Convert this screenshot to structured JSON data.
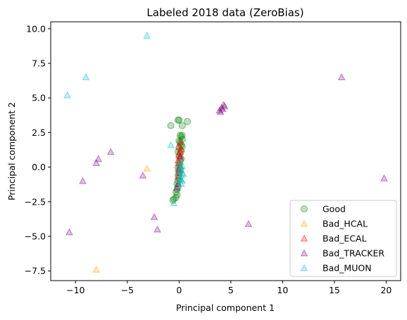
{
  "chart_data": {
    "type": "scatter",
    "title": "Labeled 2018 data (ZeroBias)",
    "xlabel": "Principal component 1",
    "ylabel": "Principal component 2",
    "xlim": [
      -12.4,
      21.4
    ],
    "ylim": [
      -8.2,
      10.5
    ],
    "xticks": [
      -10,
      -5,
      0,
      5,
      10,
      15,
      20
    ],
    "yticks": [
      -7.5,
      -5.0,
      -2.5,
      0.0,
      2.5,
      5.0,
      7.5,
      10.0
    ],
    "grid": false,
    "legend_position": "bottom-right",
    "series": [
      {
        "name": "Good",
        "marker": "circle",
        "color": "#008000",
        "points": [
          [
            -0.8,
            3.0
          ],
          [
            -0.1,
            3.4
          ],
          [
            0.0,
            3.4
          ],
          [
            0.3,
            3.0
          ],
          [
            0.8,
            3.3
          ],
          [
            0.1,
            2.3
          ],
          [
            0.2,
            2.2
          ],
          [
            0.3,
            2.0
          ],
          [
            0.1,
            1.8
          ],
          [
            0.2,
            1.6
          ],
          [
            0.0,
            1.4
          ],
          [
            0.2,
            1.2
          ],
          [
            0.1,
            1.0
          ],
          [
            0.0,
            0.8
          ],
          [
            0.2,
            0.6
          ],
          [
            0.1,
            0.4
          ],
          [
            0.0,
            0.2
          ],
          [
            -0.1,
            0.0
          ],
          [
            0.1,
            -0.2
          ],
          [
            0.0,
            -0.4
          ],
          [
            -0.1,
            -0.6
          ],
          [
            0.0,
            -0.8
          ],
          [
            -0.1,
            -1.0
          ],
          [
            -0.2,
            -1.2
          ],
          [
            -0.1,
            -1.4
          ],
          [
            -0.2,
            -1.6
          ],
          [
            -0.3,
            -1.8
          ],
          [
            -0.2,
            -2.0
          ],
          [
            -0.3,
            -2.2
          ],
          [
            -0.5,
            -2.3
          ],
          [
            -0.6,
            -2.4
          ],
          [
            0.3,
            2.3
          ],
          [
            0.0,
            1.9
          ],
          [
            0.3,
            1.5
          ],
          [
            -0.1,
            1.1
          ]
        ]
      },
      {
        "name": "Bad_HCAL",
        "marker": "triangle",
        "color": "#ffa500",
        "points": [
          [
            -3.1,
            -0.1
          ],
          [
            -8.0,
            -7.4
          ],
          [
            0.1,
            1.0
          ],
          [
            0.0,
            0.5
          ],
          [
            0.2,
            -0.2
          ]
        ]
      },
      {
        "name": "Bad_ECAL",
        "marker": "triangle",
        "color": "#ff0000",
        "points": [
          [
            0.1,
            1.8
          ],
          [
            0.0,
            1.5
          ],
          [
            0.2,
            1.3
          ],
          [
            0.1,
            1.1
          ],
          [
            0.0,
            0.9
          ],
          [
            0.1,
            0.7
          ],
          [
            -0.1,
            0.5
          ],
          [
            0.0,
            0.3
          ],
          [
            0.1,
            0.1
          ],
          [
            -0.1,
            -0.1
          ],
          [
            0.0,
            -0.4
          ],
          [
            -0.1,
            -0.7
          ]
        ]
      },
      {
        "name": "Bad_TRACKER",
        "marker": "triangle",
        "color": "#800080",
        "points": [
          [
            4.1,
            4.3
          ],
          [
            4.3,
            4.5
          ],
          [
            3.9,
            4.1
          ],
          [
            4.2,
            4.2
          ],
          [
            4.0,
            4.0
          ],
          [
            4.4,
            4.4
          ],
          [
            15.7,
            6.5
          ],
          [
            19.8,
            -0.8
          ],
          [
            6.7,
            -4.1
          ],
          [
            -6.6,
            1.1
          ],
          [
            -7.8,
            0.6
          ],
          [
            -8.0,
            0.3
          ],
          [
            -9.3,
            -1.0
          ],
          [
            -10.6,
            -4.7
          ],
          [
            -3.5,
            -0.6
          ],
          [
            -2.4,
            -3.6
          ],
          [
            -2.1,
            -4.5
          ],
          [
            0.0,
            -0.2
          ],
          [
            -0.1,
            -1.2
          ],
          [
            -0.2,
            -1.5
          ],
          [
            0.1,
            0.8
          ]
        ]
      },
      {
        "name": "Bad_MUON",
        "marker": "triangle",
        "color": "#00bfbf",
        "points": [
          [
            -3.1,
            9.5
          ],
          [
            -9.0,
            6.5
          ],
          [
            -10.8,
            5.2
          ],
          [
            -0.8,
            1.6
          ],
          [
            -0.5,
            -2.6
          ],
          [
            0.0,
            0.2
          ],
          [
            0.2,
            0.0
          ],
          [
            0.1,
            -0.2
          ],
          [
            0.3,
            -0.4
          ],
          [
            0.2,
            -0.6
          ],
          [
            0.1,
            -0.8
          ],
          [
            0.3,
            -1.0
          ],
          [
            0.2,
            -1.2
          ],
          [
            0.0,
            -0.3
          ],
          [
            0.4,
            -0.5
          ],
          [
            0.1,
            0.4
          ],
          [
            0.2,
            -0.9
          ],
          [
            0.3,
            0.1
          ]
        ]
      }
    ]
  }
}
